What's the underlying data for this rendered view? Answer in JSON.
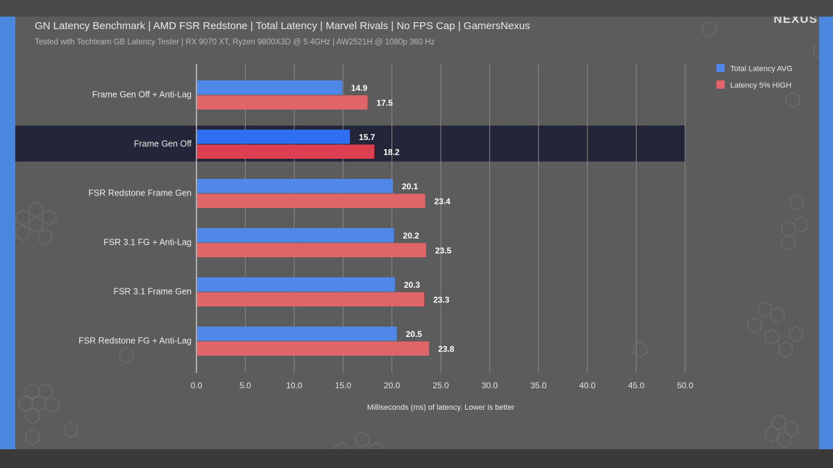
{
  "brand": "NEXUS",
  "colors": {
    "series_avg": "#4f88e8",
    "series_high": "#e06568",
    "highlight_band": "#232538",
    "highlight_avg": "#2e6ef0",
    "highlight_high": "#dc3f50"
  },
  "chart_data": {
    "type": "bar",
    "orientation": "horizontal",
    "title": "GN Latency Benchmark | AMD FSR Redstone | Total Latency | Marvel Rivals | No FPS Cap | GamersNexus",
    "subtitle": "Tested with Techteam GB Latency Tester | RX 9070 XT, Ryzen 9800X3D @ 5.4GHz | AW2521H @ 1080p 360 Hz",
    "categories": [
      "Frame Gen Off + Anti-Lag",
      "Frame Gen Off",
      "FSR Redstone Frame Gen",
      "FSR 3.1 FG + Anti-Lag",
      "FSR 3.1 Frame Gen",
      "FSR Redstone FG + Anti-Lag"
    ],
    "highlighted_category": "Frame Gen Off",
    "series": [
      {
        "name": "Total Latency AVG",
        "values": [
          14.9,
          15.7,
          20.1,
          20.2,
          20.3,
          20.5
        ],
        "labels": [
          "14.9",
          "15.7",
          "20.1",
          "20.2",
          "20.3",
          "20.5"
        ]
      },
      {
        "name": "Latency 5% HIGH",
        "values": [
          17.5,
          18.2,
          23.4,
          23.5,
          23.3,
          23.8
        ],
        "labels": [
          "17.5",
          "18.2",
          "23.4",
          "23.5",
          "23.3",
          "23.8"
        ]
      }
    ],
    "xlabel": "Milliseconds (ms) of latency. Lower is better",
    "xlim": [
      0,
      50
    ],
    "xticks": [
      0,
      5,
      10,
      15,
      20,
      25,
      30,
      35,
      40,
      45,
      50
    ],
    "xtick_labels": [
      "0.0",
      "5.0",
      "10.0",
      "15.0",
      "20.0",
      "25.0",
      "30.0",
      "35.0",
      "40.0",
      "45.0",
      "50.0"
    ],
    "grid": true,
    "legend_position": "top-right"
  }
}
